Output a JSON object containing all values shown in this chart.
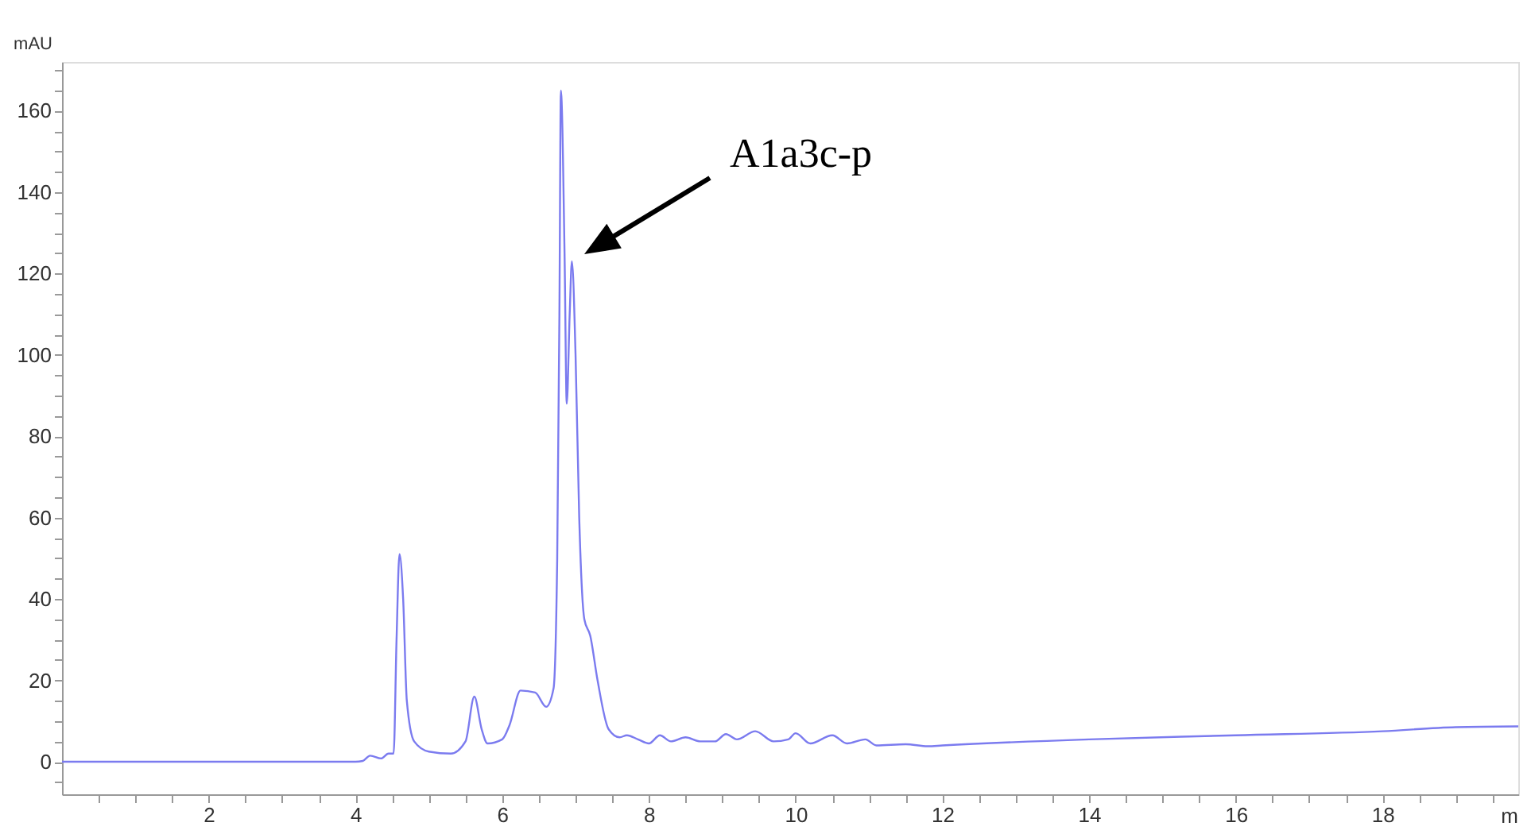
{
  "chart_data": {
    "type": "line",
    "xlabel": "m",
    "ylabel": "mAU",
    "grid": false,
    "marker": "none",
    "line_style": "solid",
    "xlim": [
      0,
      19.85
    ],
    "ylim": [
      -8,
      172
    ],
    "xticks": [
      {
        "value": 0.5,
        "label": null
      },
      {
        "value": 1,
        "label": null
      },
      {
        "value": 1.5,
        "label": null
      },
      2,
      {
        "value": 2.5,
        "label": null
      },
      {
        "value": 3,
        "label": null
      },
      {
        "value": 3.5,
        "label": null
      },
      4,
      {
        "value": 4.5,
        "label": null
      },
      {
        "value": 5,
        "label": null
      },
      {
        "value": 5.5,
        "label": null
      },
      6,
      {
        "value": 6.5,
        "label": null
      },
      {
        "value": 7,
        "label": null
      },
      {
        "value": 7.5,
        "label": null
      },
      8,
      {
        "value": 8.5,
        "label": null
      },
      {
        "value": 9,
        "label": null
      },
      {
        "value": 9.5,
        "label": null
      },
      10,
      {
        "value": 10.5,
        "label": null
      },
      {
        "value": 11,
        "label": null
      },
      {
        "value": 11.5,
        "label": null
      },
      12,
      {
        "value": 12.5,
        "label": null
      },
      {
        "value": 13,
        "label": null
      },
      {
        "value": 13.5,
        "label": null
      },
      14,
      {
        "value": 14.5,
        "label": null
      },
      {
        "value": 15,
        "label": null
      },
      {
        "value": 15.5,
        "label": null
      },
      16,
      {
        "value": 16.5,
        "label": null
      },
      {
        "value": 17,
        "label": null
      },
      {
        "value": 17.5,
        "label": null
      },
      18,
      {
        "value": 18.5,
        "label": null
      },
      {
        "value": 19,
        "label": null
      },
      {
        "value": 19.5,
        "label": null
      }
    ],
    "yticks": [
      {
        "value": -5,
        "label": null
      },
      0,
      {
        "value": 5,
        "label": null
      },
      {
        "value": 10,
        "label": null
      },
      {
        "value": 15,
        "label": null
      },
      20,
      {
        "value": 25,
        "label": null
      },
      {
        "value": 30,
        "label": null
      },
      {
        "value": 35,
        "label": null
      },
      40,
      {
        "value": 45,
        "label": null
      },
      {
        "value": 50,
        "label": null
      },
      {
        "value": 55,
        "label": null
      },
      60,
      {
        "value": 65,
        "label": null
      },
      {
        "value": 70,
        "label": null
      },
      {
        "value": 75,
        "label": null
      },
      80,
      {
        "value": 85,
        "label": null
      },
      {
        "value": 90,
        "label": null
      },
      {
        "value": 95,
        "label": null
      },
      100,
      {
        "value": 105,
        "label": null
      },
      {
        "value": 110,
        "label": null
      },
      {
        "value": 115,
        "label": null
      },
      120,
      {
        "value": 125,
        "label": null
      },
      {
        "value": 130,
        "label": null
      },
      {
        "value": 135,
        "label": null
      },
      140,
      {
        "value": 145,
        "label": null
      },
      {
        "value": 150,
        "label": null
      },
      {
        "value": 155,
        "label": null
      },
      160,
      {
        "value": 165,
        "label": null
      },
      {
        "value": 170,
        "label": null
      }
    ],
    "legend": false,
    "annotations": [
      "A1a3c-p"
    ],
    "series": [
      {
        "color": "#7b7bef",
        "x": [
          0,
          1,
          2,
          3,
          4,
          4.1,
          4.2,
          4.35,
          4.45,
          4.52,
          4.56,
          4.6,
          4.65,
          4.7,
          4.8,
          5.0,
          5.3,
          5.5,
          5.62,
          5.72,
          5.8,
          6.0,
          6.1,
          6.25,
          6.45,
          6.6,
          6.7,
          6.75,
          6.78,
          6.8,
          6.85,
          6.88,
          6.92,
          6.95,
          7.0,
          7.05,
          7.12,
          7.2,
          7.3,
          7.45,
          7.6,
          7.7,
          7.85,
          8.0,
          8.15,
          8.3,
          8.5,
          8.7,
          8.9,
          9.05,
          9.2,
          9.45,
          9.7,
          9.9,
          10.0,
          10.2,
          10.5,
          10.7,
          10.95,
          11.1,
          11.5,
          11.8,
          12,
          14,
          16,
          18,
          19,
          19.85
        ],
        "values": [
          0,
          0,
          0,
          0,
          0,
          0.2,
          1.5,
          0.8,
          2,
          2,
          30,
          51,
          40,
          15,
          5,
          2.5,
          2,
          5,
          16,
          8,
          4.5,
          5.5,
          9,
          17.5,
          17,
          13.5,
          18,
          50,
          110,
          165,
          125,
          88,
          110,
          123,
          100,
          60,
          35,
          31,
          20,
          8,
          6,
          6.5,
          5.5,
          4.5,
          6.5,
          5,
          6,
          5,
          5,
          6.8,
          5.5,
          7.5,
          5,
          5.5,
          7,
          4.5,
          6.5,
          4.5,
          5.5,
          4,
          4.3,
          3.8,
          4,
          5.5,
          6.5,
          7.5,
          8.5,
          8.7
        ]
      }
    ]
  }
}
